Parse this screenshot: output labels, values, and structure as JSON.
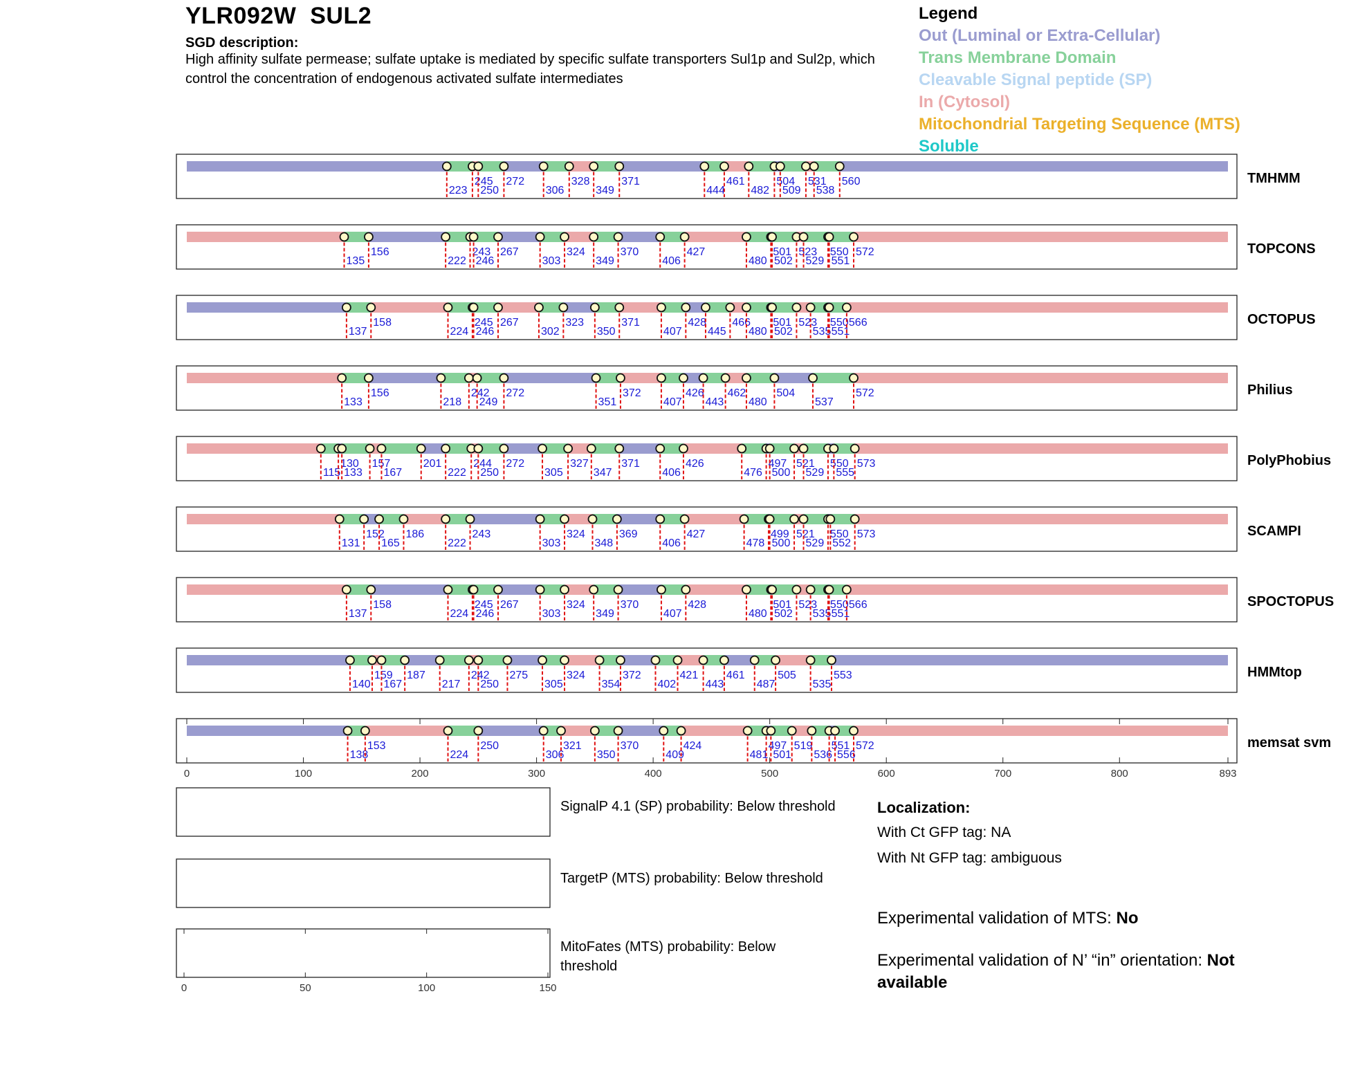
{
  "header": {
    "gene_title": "YLR092W  SUL2",
    "sgd_heading": "SGD description:",
    "sgd_description": "High affinity sulfate permease; sulfate uptake is mediated by specific sulfate transporters Sul1p and Sul2p, which control the concentration of endogenous activated sulfate intermediates"
  },
  "legend": {
    "title": "Legend",
    "items": [
      {
        "label": "Out (Luminal or Extra-Cellular)",
        "color": "#9a9ccf"
      },
      {
        "label": "Trans Membrane Domain",
        "color": "#87d19a"
      },
      {
        "label": "Cleavable Signal peptide (SP)",
        "color": "#b8d6f2"
      },
      {
        "label": "In (Cytosol)",
        "color": "#eba9aa"
      },
      {
        "label": "Mitochondrial Targeting Sequence (MTS)",
        "color": "#ebb02a"
      },
      {
        "label": "Soluble",
        "color": "#1ec8c8"
      }
    ]
  },
  "colors": {
    "out": "#9a9ccf",
    "tm": "#87d19a",
    "in": "#eba9aa",
    "label": "#1a1ad6",
    "dash": "#e01010"
  },
  "chart_data": {
    "type": "bar",
    "xlim": [
      0,
      893
    ],
    "x_ticks": [
      0,
      100,
      200,
      300,
      400,
      500,
      600,
      700,
      800,
      893
    ],
    "tracks": [
      {
        "name": "TMHMM",
        "start": "out",
        "boundaries": [
          223,
          245,
          250,
          272,
          306,
          328,
          349,
          371,
          444,
          461,
          482,
          504,
          509,
          531,
          538,
          560
        ]
      },
      {
        "name": "TOPCONS",
        "start": "in",
        "boundaries": [
          135,
          156,
          222,
          243,
          246,
          267,
          303,
          324,
          349,
          370,
          406,
          427,
          480,
          501,
          502,
          523,
          529,
          550,
          551,
          572
        ]
      },
      {
        "name": "OCTOPUS",
        "start": "out",
        "boundaries": [
          137,
          158,
          224,
          245,
          246,
          267,
          302,
          323,
          350,
          371,
          407,
          428,
          445,
          466,
          480,
          501,
          502,
          523,
          535,
          550,
          551,
          566
        ]
      },
      {
        "name": "Philius",
        "start": "in",
        "boundaries": [
          133,
          156,
          218,
          242,
          249,
          272,
          351,
          372,
          407,
          426,
          443,
          462,
          480,
          504,
          537,
          572
        ]
      },
      {
        "name": "PolyPhobius",
        "start": "in",
        "boundaries": [
          115,
          130,
          133,
          157,
          167,
          201,
          222,
          244,
          250,
          272,
          305,
          327,
          347,
          371,
          406,
          426,
          476,
          497,
          500,
          521,
          529,
          550,
          555,
          573
        ]
      },
      {
        "name": "SCAMPI",
        "start": "in",
        "boundaries": [
          131,
          152,
          165,
          186,
          222,
          243,
          303,
          324,
          348,
          369,
          406,
          427,
          478,
          499,
          500,
          521,
          529,
          550,
          552,
          573
        ]
      },
      {
        "name": "SPOCTOPUS",
        "start": "in",
        "boundaries": [
          137,
          158,
          224,
          245,
          246,
          267,
          303,
          324,
          349,
          370,
          407,
          428,
          480,
          501,
          502,
          523,
          535,
          550,
          551,
          566
        ]
      },
      {
        "name": "HMMtop",
        "start": "out",
        "boundaries": [
          140,
          159,
          167,
          187,
          217,
          242,
          250,
          275,
          305,
          324,
          354,
          372,
          402,
          421,
          443,
          461,
          487,
          505,
          535,
          553
        ]
      },
      {
        "name": "memsat svm",
        "start": "out",
        "boundaries": [
          138,
          153,
          224,
          250,
          306,
          321,
          350,
          370,
          409,
          424,
          481,
          497,
          501,
          519,
          536,
          551,
          556,
          572
        ]
      }
    ],
    "probability_panels": [
      {
        "label": "SignalP 4.1 (SP) probability: Below threshold"
      },
      {
        "label": "TargetP (MTS) probability: Below threshold"
      },
      {
        "label": "MitoFates (MTS) probability: Below threshold"
      }
    ],
    "small_x_ticks": [
      0,
      50,
      100,
      150
    ],
    "small_xlim": [
      0,
      150
    ]
  },
  "localization": {
    "heading": "Localization:",
    "ct_gfp": "With Ct GFP tag: NA",
    "nt_gfp": "With Nt GFP tag: ambiguous",
    "mts_validation_label": "Experimental validation of MTS: ",
    "mts_validation_value": "No",
    "orientation_label": "Experimental validation of N’ “in” orientation: ",
    "orientation_value": "Not available"
  }
}
